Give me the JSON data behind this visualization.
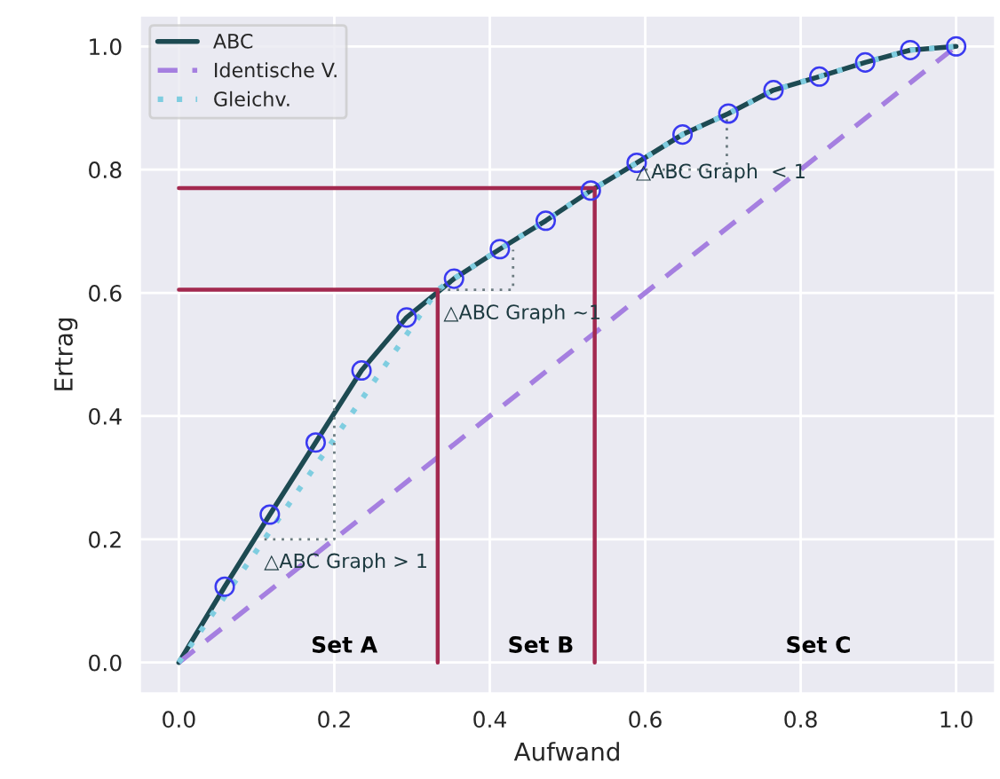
{
  "chart_data": {
    "type": "line",
    "xlabel": "Aufwand",
    "ylabel": "Ertrag",
    "xlim": [
      -0.05,
      1.05
    ],
    "ylim": [
      -0.05,
      1.05
    ],
    "xticks": [
      {
        "value": 0,
        "label": "0.0"
      },
      0.2,
      0.4,
      0.6,
      0.8,
      {
        "value": 1,
        "label": "1.0"
      }
    ],
    "yticks": [
      {
        "value": 0,
        "label": "0.0"
      },
      0.2,
      0.4,
      0.6,
      0.8,
      {
        "value": 1,
        "label": "1.0"
      }
    ],
    "grid": true,
    "legend": "top left",
    "series": [
      {
        "name": "ABC",
        "color": "#1d4a52",
        "line_style": "solid",
        "x": [
          0,
          0.059,
          0.117,
          0.176,
          0.235,
          0.293,
          0.354,
          0.413,
          0.472,
          0.53,
          0.589,
          0.648,
          0.707,
          0.765,
          0.824,
          0.883,
          0.941,
          1.0
        ],
        "values": [
          0,
          0.123,
          0.24,
          0.357,
          0.474,
          0.56,
          0.623,
          0.671,
          0.717,
          0.766,
          0.811,
          0.857,
          0.891,
          0.929,
          0.951,
          0.974,
          0.994,
          1.0
        ]
      },
      {
        "name": "Identische V.",
        "type": "line",
        "color": "#a57fe0",
        "line_style": "dashed",
        "x": [
          0,
          1.0
        ],
        "values": [
          0,
          1.0
        ]
      },
      {
        "name": "Gleichv.",
        "type": "line",
        "color": "#7fcde0",
        "line_style": "dotted",
        "x": [
          0,
          0.333,
          0.354,
          0.413,
          0.472,
          0.53,
          0.589,
          0.648,
          0.707,
          0.765,
          0.824,
          0.883,
          0.941,
          1.0
        ],
        "values": [
          0,
          0.605,
          0.623,
          0.671,
          0.717,
          0.766,
          0.811,
          0.857,
          0.891,
          0.929,
          0.951,
          0.974,
          0.994,
          1.0
        ]
      },
      {
        "type": "scatter",
        "color": "#3a3af0",
        "marker": "circle",
        "x": [
          0.059,
          0.117,
          0.176,
          0.235,
          0.293,
          0.354,
          0.413,
          0.472,
          0.53,
          0.589,
          0.648,
          0.707,
          0.765,
          0.824,
          0.883,
          0.941,
          1.0
        ],
        "values": [
          0.123,
          0.24,
          0.357,
          0.474,
          0.56,
          0.623,
          0.671,
          0.717,
          0.766,
          0.811,
          0.857,
          0.891,
          0.929,
          0.951,
          0.974,
          0.994,
          1.0
        ]
      },
      {
        "type": "line",
        "color": "#a3294f",
        "line_style": "solid",
        "x": [
          0,
          0.333,
          0.333
        ],
        "values": [
          0.605,
          0.605,
          0
        ]
      },
      {
        "type": "line",
        "color": "#a3294f",
        "line_style": "solid",
        "x": [
          0,
          0.535,
          0.535
        ],
        "values": [
          0.77,
          0.77,
          0
        ]
      },
      {
        "type": "line",
        "color": "#6b7b80",
        "line_style": "dotted",
        "x": [
          0.11,
          0.2,
          0.2
        ],
        "values": [
          0.2,
          0.2,
          0.43
        ]
      },
      {
        "type": "line",
        "color": "#6b7b80",
        "line_style": "dotted",
        "x": [
          0.335,
          0.43,
          0.43
        ],
        "values": [
          0.605,
          0.605,
          0.67
        ]
      },
      {
        "type": "line",
        "color": "#6b7b80",
        "line_style": "dotted",
        "x": [
          0.6,
          0.705,
          0.705
        ],
        "values": [
          0.8,
          0.8,
          0.89
        ]
      }
    ],
    "annotations": [
      "△ABC Graph > 1",
      "△ABC Graph ~1",
      "△ABC Graph  < 1",
      "Set A",
      "Set B",
      "Set C"
    ]
  }
}
